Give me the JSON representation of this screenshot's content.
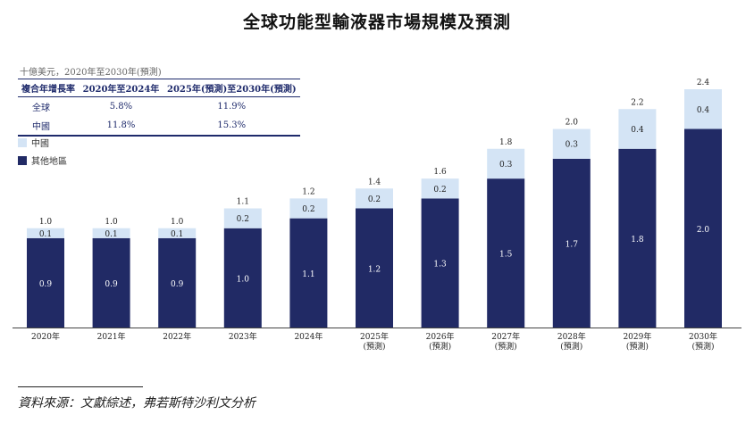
{
  "title": "全球功能型輸液器市場規模及預測",
  "unit_note": "十億美元，2020年至2030年(預測)",
  "cagr_table": {
    "headers": [
      "複合年增長率",
      "2020年至2024年",
      "2025年(預測)至2030年(預測)"
    ],
    "rows": [
      {
        "region": "全球",
        "v1": "5.8%",
        "v2": "11.9%"
      },
      {
        "region": "中國",
        "v1": "11.8%",
        "v2": "15.3%"
      }
    ]
  },
  "source": "資料來源：文獻綜述，弗若斯特沙利文分析",
  "colors": {
    "china": "#d4e4f5",
    "other": "#212a65"
  },
  "chart_data": {
    "type": "bar",
    "stacked": true,
    "categories": [
      "2020年",
      "2021年",
      "2022年",
      "2023年",
      "2024年",
      "2025年",
      "2026年",
      "2027年",
      "2028年",
      "2029年",
      "2030年"
    ],
    "category_sublabels": [
      "",
      "",
      "",
      "",
      "",
      "(預測)",
      "(預測)",
      "(預測)",
      "(預測)",
      "(預測)",
      "(預測)"
    ],
    "series": [
      {
        "name": "其他地區",
        "values": [
          0.9,
          0.9,
          0.9,
          1.0,
          1.1,
          1.2,
          1.3,
          1.5,
          1.7,
          1.8,
          2.0
        ]
      },
      {
        "name": "中國",
        "values": [
          0.1,
          0.1,
          0.1,
          0.2,
          0.2,
          0.2,
          0.2,
          0.3,
          0.3,
          0.4,
          0.4
        ]
      }
    ],
    "totals": [
      1.0,
      1.0,
      1.0,
      1.1,
      1.2,
      1.4,
      1.6,
      1.8,
      2.0,
      2.2,
      2.4
    ],
    "legend": [
      "中國",
      "其他地區"
    ],
    "legend_position": "top-left",
    "ylim": [
      0,
      2.4
    ]
  }
}
